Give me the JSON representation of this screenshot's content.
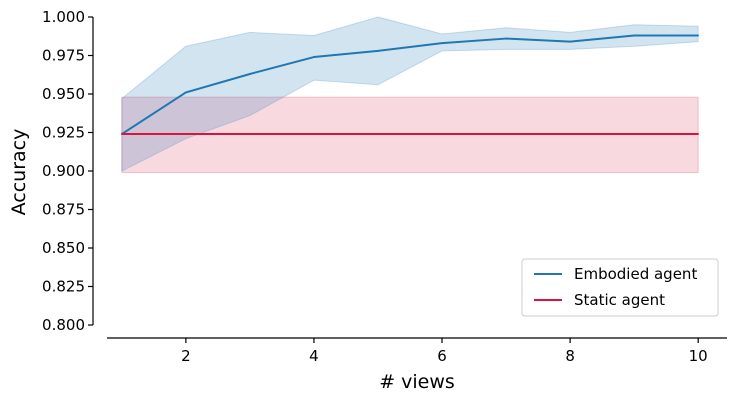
{
  "chart_data": {
    "type": "line",
    "xlabel": "# views",
    "ylabel": "Accuracy",
    "xlim": [
      0.55,
      10.45
    ],
    "ylim": [
      0.8,
      1.0
    ],
    "x_ticks": [
      2,
      4,
      6,
      8,
      10
    ],
    "y_ticks": [
      0.8,
      0.825,
      0.85,
      0.875,
      0.9,
      0.925,
      0.95,
      0.975,
      1.0
    ],
    "x_tick_labels": [
      "2",
      "4",
      "6",
      "8",
      "10"
    ],
    "y_tick_labels": [
      "0.800",
      "0.825",
      "0.850",
      "0.875",
      "0.900",
      "0.925",
      "0.950",
      "0.975",
      "1.000"
    ],
    "grid": false,
    "legend_position": "lower-right",
    "series": [
      {
        "name": "Embodied agent",
        "color": "#1f77b4",
        "x": [
          1,
          2,
          3,
          4,
          5,
          6,
          7,
          8,
          9,
          10
        ],
        "y": [
          0.924,
          0.951,
          0.963,
          0.974,
          0.978,
          0.983,
          0.986,
          0.984,
          0.988,
          0.988
        ],
        "band_lower": [
          0.9,
          0.921,
          0.936,
          0.959,
          0.956,
          0.978,
          0.979,
          0.979,
          0.981,
          0.984
        ],
        "band_upper": [
          0.947,
          0.981,
          0.99,
          0.988,
          1.0,
          0.989,
          0.993,
          0.99,
          0.995,
          0.994
        ]
      },
      {
        "name": "Static agent",
        "color": "#dc143c",
        "x": [
          1,
          10
        ],
        "y": [
          0.924,
          0.924
        ],
        "band_lower": [
          0.899,
          0.899
        ],
        "band_upper": [
          0.948,
          0.948
        ]
      }
    ]
  }
}
